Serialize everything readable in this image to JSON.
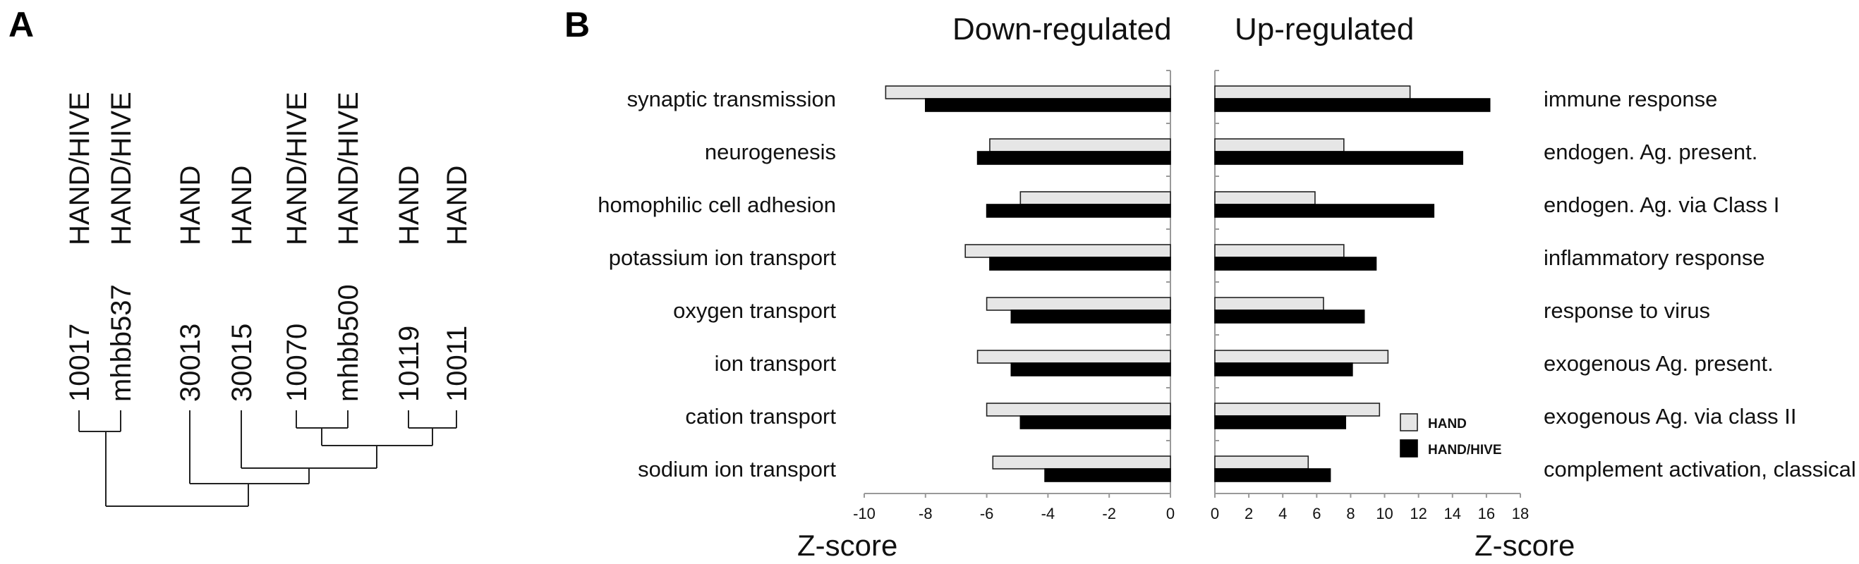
{
  "panel_a": {
    "letter": "A",
    "leaves": [
      {
        "group": "HAND/HIVE",
        "sample": "10017"
      },
      {
        "group": "HAND/HIVE",
        "sample": "mhbb537"
      },
      {
        "group": "HAND",
        "sample": "30013"
      },
      {
        "group": "HAND",
        "sample": "30015"
      },
      {
        "group": "HAND/HIVE",
        "sample": "10070"
      },
      {
        "group": "HAND/HIVE",
        "sample": "mhbb500"
      },
      {
        "group": "HAND",
        "sample": "10119"
      },
      {
        "group": "HAND",
        "sample": "10011"
      }
    ]
  },
  "panel_b": {
    "letter": "B",
    "legend": {
      "hand": "HAND",
      "hive": "HAND/HIVE"
    }
  },
  "chart_data": [
    {
      "type": "bar",
      "orientation": "horizontal",
      "title": "Down-regulated",
      "xlabel": "Z-score",
      "xlim": [
        -10,
        0
      ],
      "xticks": [
        "-10",
        "-8",
        "-6",
        "-4",
        "-2",
        "0"
      ],
      "categories": [
        "synaptic transmission",
        "neurogenesis",
        "homophilic cell adhesion",
        "potassium ion transport",
        "oxygen transport",
        "ion transport",
        "cation transport",
        "sodium ion transport"
      ],
      "series": [
        {
          "name": "HAND",
          "color": "#e6e6e6",
          "values": [
            -9.3,
            -5.9,
            -4.9,
            -6.7,
            -6.0,
            -6.3,
            -6.0,
            -5.8
          ]
        },
        {
          "name": "HAND/HIVE",
          "color": "#000000",
          "values": [
            -8.0,
            -6.3,
            -6.0,
            -5.9,
            -5.2,
            -5.2,
            -4.9,
            -4.1
          ]
        }
      ]
    },
    {
      "type": "bar",
      "orientation": "horizontal",
      "title": "Up-regulated",
      "xlabel": "Z-score",
      "xlim": [
        0,
        18
      ],
      "xticks": [
        "0",
        "2",
        "4",
        "6",
        "8",
        "10",
        "12",
        "14",
        "16",
        "18"
      ],
      "categories": [
        "immune response",
        "endogen. Ag. present.",
        "endogen. Ag. via Class I",
        "inflammatory response",
        "response to virus",
        "exogenous Ag. present.",
        "exogenous Ag. via class II",
        "complement activation, classical"
      ],
      "series": [
        {
          "name": "HAND",
          "color": "#e6e6e6",
          "values": [
            11.5,
            7.6,
            5.9,
            7.6,
            6.4,
            10.2,
            9.7,
            5.5
          ]
        },
        {
          "name": "HAND/HIVE",
          "color": "#000000",
          "values": [
            16.2,
            14.6,
            12.9,
            9.5,
            8.8,
            8.1,
            7.7,
            6.8
          ]
        }
      ]
    }
  ]
}
